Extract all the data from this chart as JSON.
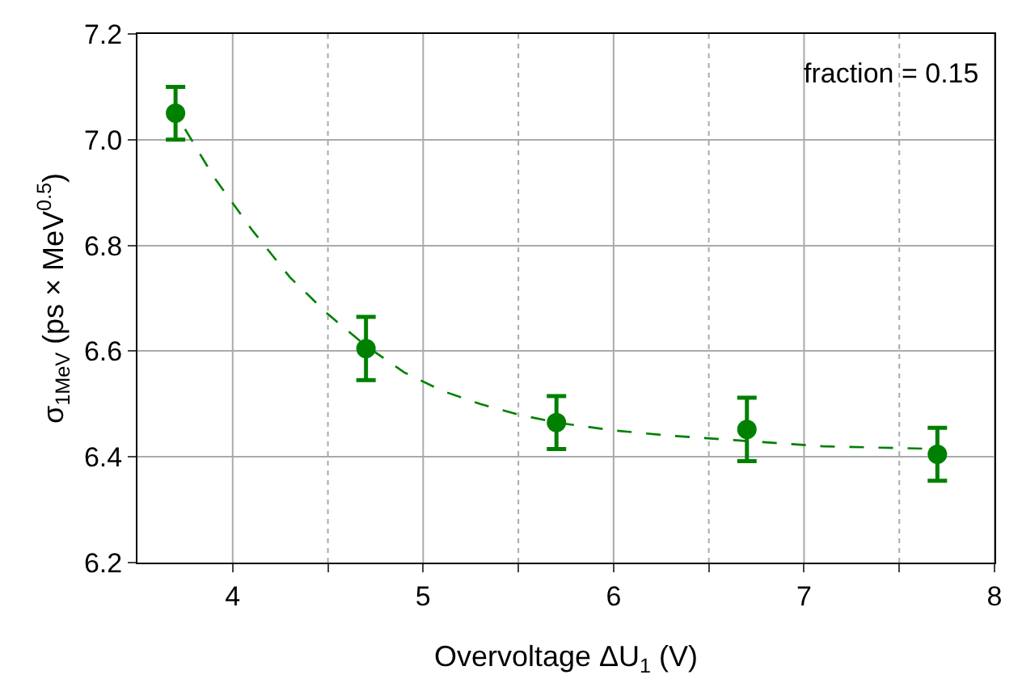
{
  "chart_data": {
    "type": "scatter",
    "xlabel": "Overvoltage ΔU$_{1}$ (V)",
    "ylabel": "σ$_{1MeV}$ (ps × MeV$^{0.5}$)",
    "annotations": [
      "fraction = 0.15"
    ],
    "xlim": [
      3.5,
      8
    ],
    "ylim": [
      6.2,
      7.2
    ],
    "xticks": [
      4,
      {
        "value": 4.5,
        "label": null
      },
      5,
      {
        "value": 5.5,
        "label": null
      },
      6,
      {
        "value": 6.5,
        "label": null
      },
      7,
      {
        "value": 7.5,
        "label": null
      },
      8
    ],
    "yticks": [
      6.2,
      6.4,
      6.6,
      6.8,
      {
        "value": 7,
        "label": "7.0"
      },
      7.2
    ],
    "grid": true,
    "series": [
      {
        "type": "scatter",
        "color": "#008000",
        "marker": "circle",
        "x": [
          3.7,
          4.7,
          5.7,
          6.7,
          7.7
        ],
        "values": [
          7.05,
          6.605,
          6.465,
          6.452,
          6.405
        ],
        "errors": [
          0.05,
          0.06,
          0.05,
          0.06,
          0.05
        ]
      },
      {
        "type": "line",
        "color": "#008000",
        "line_style": "dashed",
        "marker": "none",
        "x": [
          3.75,
          3.9,
          4.1,
          4.3,
          4.5,
          4.7,
          4.9,
          5.1,
          5.3,
          5.5,
          5.7,
          6.0,
          6.3,
          6.7,
          7.1,
          7.7
        ],
        "values": [
          7.02,
          6.93,
          6.83,
          6.74,
          6.67,
          6.61,
          6.56,
          6.525,
          6.5,
          6.48,
          6.465,
          6.45,
          6.44,
          6.43,
          6.42,
          6.415
        ]
      }
    ]
  }
}
